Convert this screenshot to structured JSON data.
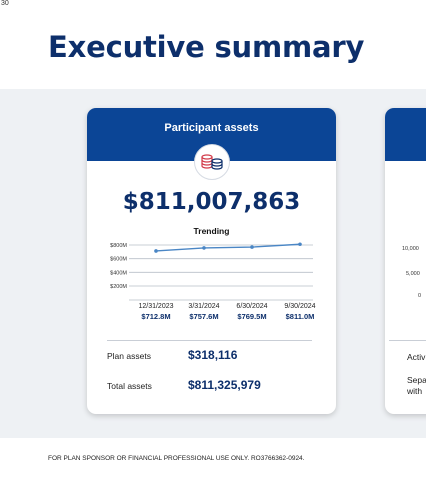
{
  "page_number": "30",
  "title": "Executive summary",
  "card": {
    "title": "Participant assets",
    "icon": "coins-stack-icon",
    "total": "$811,007,863",
    "trend_label": "Trending",
    "rows": [
      {
        "label": "Plan assets",
        "value": "$318,116"
      },
      {
        "label": "Total assets",
        "value": "$811,325,979"
      }
    ]
  },
  "chart_data": {
    "type": "line",
    "title": "Trending",
    "categories": [
      "12/31/2023",
      "3/31/2024",
      "6/30/2024",
      "9/30/2024"
    ],
    "values": [
      712.8,
      757.6,
      769.5,
      811.0
    ],
    "value_labels": [
      "$712.8M",
      "$757.6M",
      "$769.5M",
      "$811.0M"
    ],
    "y_ticks": [
      "$800M",
      "$600M",
      "$400M",
      "$200M"
    ],
    "y_tick_values": [
      800,
      600,
      400,
      200
    ],
    "ylim": [
      200,
      800
    ],
    "grid": true,
    "colors": {
      "line": "#4a86c5",
      "marker": "#4a86c5"
    }
  },
  "card2": {
    "y_ticks": [
      "10,000",
      "5,000",
      "0"
    ],
    "row_texts": [
      "Activ",
      "Sepa",
      "with"
    ]
  },
  "footer": "FOR PLAN SPONSOR OR FINANCIAL PROFESSIONAL USE ONLY. RO3766362-0924.",
  "colors": {
    "brand": "#0b4596",
    "title": "#0d2f6b",
    "band": "#eef1f4"
  }
}
